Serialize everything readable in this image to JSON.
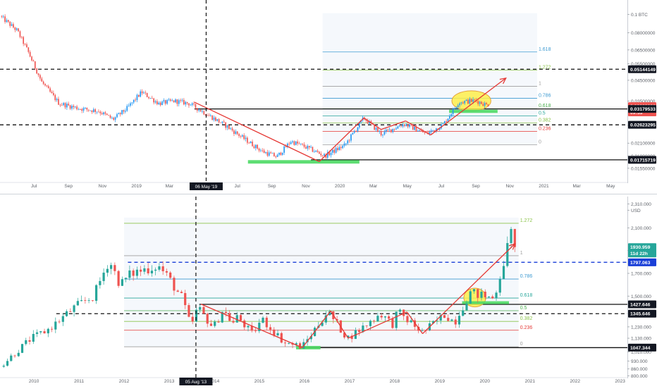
{
  "chart_data": [
    {
      "type": "candlestick",
      "quote_unit": "BTC",
      "colors": {
        "up": "#2196f3",
        "down": "#ef5350",
        "fib_fill": "#f5f8fc",
        "trend": "#e53935",
        "highlight_fill": "#fdee4a",
        "support_fill": "#4cd964"
      },
      "x_axis": {
        "ticks": [
          {
            "label": "Jul",
            "date": "2018-07-01"
          },
          {
            "label": "Sep",
            "date": "2018-09-01"
          },
          {
            "label": "Nov",
            "date": "2018-11-01"
          },
          {
            "label": "2019",
            "date": "2019-01-01"
          },
          {
            "label": "Mar",
            "date": "2019-03-01"
          },
          {
            "label": "May",
            "date": "2019-05-01"
          },
          {
            "label": "Jul",
            "date": "2019-07-01"
          },
          {
            "label": "Sep",
            "date": "2019-09-01"
          },
          {
            "label": "Nov",
            "date": "2019-11-01"
          },
          {
            "label": "2020",
            "date": "2020-01-01"
          },
          {
            "label": "Mar",
            "date": "2020-03-01"
          },
          {
            "label": "May",
            "date": "2020-05-01"
          },
          {
            "label": "Jul",
            "date": "2020-07-01"
          },
          {
            "label": "Sep",
            "date": "2020-09-01"
          },
          {
            "label": "Nov",
            "date": "2020-11-01"
          },
          {
            "label": "2021",
            "date": "2021-01-01"
          },
          {
            "label": "Mar",
            "date": "2021-03-01"
          },
          {
            "label": "May",
            "date": "2021-05-01"
          }
        ],
        "range": [
          "2018-05-01",
          "2021-05-31"
        ],
        "crosshair": {
          "label": "06 May '19",
          "date": "2019-05-06"
        }
      },
      "y_axis": {
        "scale": "log",
        "range": [
          0.0135,
          0.115
        ],
        "ticks": [
          {
            "label": "0.1 BTC",
            "value": 0.1
          },
          {
            "label": "0.08000000",
            "value": 0.08
          },
          {
            "label": "0.06500000",
            "value": 0.065
          },
          {
            "label": "0.05500000",
            "value": 0.055
          },
          {
            "label": "0.04500000",
            "value": 0.045
          },
          {
            "label": "0.03500000",
            "value": 0.035
          },
          {
            "label": "0.02600000",
            "value": 0.026
          },
          {
            "label": "0.02100000",
            "value": 0.021
          },
          {
            "label": "0.01800000",
            "value": 0.018
          },
          {
            "label": "0.01550000",
            "value": 0.0155
          }
        ]
      },
      "price_tags": [
        {
          "label": "0.05144149",
          "value": 0.05144149,
          "style": "dashed-line"
        },
        {
          "label": "0.03289996",
          "value": 0.03289996,
          "style": "current"
        },
        {
          "label": "09:53",
          "value": 0.0305,
          "style": "countdown"
        },
        {
          "label": "0.03179533",
          "value": 0.03179533,
          "style": "solid-line"
        },
        {
          "label": "0.02623295",
          "value": 0.02623295,
          "style": "dashed-line"
        },
        {
          "label": "0.01715719",
          "value": 0.01715719,
          "style": "solid-line"
        }
      ],
      "fib_levels": [
        {
          "label": "1.618",
          "value": 0.0634,
          "color": "#3d9ad1"
        },
        {
          "label": "1.272",
          "value": 0.0509,
          "color": "#8bc34a"
        },
        {
          "label": "1",
          "value": 0.0418,
          "color": "#9e9e9e"
        },
        {
          "label": "0.786",
          "value": 0.0362,
          "color": "#3d9ad1"
        },
        {
          "label": "0.618",
          "value": 0.0319,
          "color": "#4caf50"
        },
        {
          "label": "0.5",
          "value": 0.0292,
          "color": "#26a69a"
        },
        {
          "label": "0.382",
          "value": 0.0268,
          "color": "#8bc34a"
        },
        {
          "label": "0.236",
          "value": 0.0242,
          "color": "#e53935"
        },
        {
          "label": "0",
          "value": 0.0206,
          "color": "#9e9e9e"
        }
      ],
      "fib_range": [
        "2019-12-01",
        "2020-12-20"
      ],
      "horizontal_levels": [
        {
          "value": 0.05144149,
          "style": "dashed",
          "from": "2018-05-01"
        },
        {
          "value": 0.03179533,
          "style": "solid",
          "from": "2019-04-15"
        },
        {
          "value": 0.02623295,
          "style": "dashed",
          "from": "2018-05-01"
        },
        {
          "value": 0.01715719,
          "style": "solid",
          "from": "2019-11-10"
        }
      ],
      "trend_lines": [
        {
          "points": [
            [
              "2019-04-15",
              0.0345
            ],
            [
              "2019-11-25",
              0.0168
            ]
          ]
        },
        {
          "points": [
            [
              "2019-11-25",
              0.0168
            ],
            [
              "2020-02-13",
              0.0285
            ]
          ]
        },
        {
          "points": [
            [
              "2020-02-13",
              0.0285
            ],
            [
              "2020-03-15",
              0.0248
            ]
          ]
        },
        {
          "points": [
            [
              "2020-03-15",
              0.0248
            ],
            [
              "2020-04-28",
              0.0275
            ]
          ]
        },
        {
          "points": [
            [
              "2020-04-28",
              0.0275
            ],
            [
              "2020-06-12",
              0.0232
            ]
          ]
        },
        {
          "points": [
            [
              "2020-06-12",
              0.0232
            ],
            [
              "2020-10-25",
              0.0462
            ]
          ],
          "arrow": true
        }
      ],
      "highlights": [
        {
          "type": "ellipse",
          "from": "2020-07-20",
          "to": "2020-09-28",
          "low": 0.031,
          "high": 0.0396
        },
        {
          "type": "rect",
          "from": "2019-07-20",
          "to": "2020-02-05",
          "low": 0.0164,
          "high": 0.0171
        },
        {
          "type": "rect",
          "from": "2020-07-15",
          "to": "2020-10-10",
          "low": 0.0303,
          "high": 0.0315
        }
      ],
      "ohlc_anchors": [
        [
          "2018-05-01",
          0.098
        ],
        [
          "2018-06-01",
          0.082
        ],
        [
          "2018-06-20",
          0.064
        ],
        [
          "2018-07-15",
          0.044
        ],
        [
          "2018-08-15",
          0.034
        ],
        [
          "2018-09-20",
          0.032
        ],
        [
          "2018-10-25",
          0.031
        ],
        [
          "2018-11-20",
          0.028
        ],
        [
          "2018-12-15",
          0.032
        ],
        [
          "2019-01-10",
          0.039
        ],
        [
          "2019-02-10",
          0.034
        ],
        [
          "2019-03-10",
          0.035
        ],
        [
          "2019-04-05",
          0.034
        ],
        [
          "2019-05-06",
          0.03
        ],
        [
          "2019-06-10",
          0.026
        ],
        [
          "2019-07-10",
          0.0225
        ],
        [
          "2019-08-15",
          0.019
        ],
        [
          "2019-09-10",
          0.0178
        ],
        [
          "2019-10-05",
          0.0215
        ],
        [
          "2019-11-05",
          0.0198
        ],
        [
          "2019-12-05",
          0.018
        ],
        [
          "2020-01-10",
          0.0205
        ],
        [
          "2020-02-13",
          0.0285
        ],
        [
          "2020-03-15",
          0.0235
        ],
        [
          "2020-04-25",
          0.0265
        ],
        [
          "2020-06-05",
          0.0235
        ],
        [
          "2020-07-05",
          0.0265
        ],
        [
          "2020-08-01",
          0.0345
        ],
        [
          "2020-09-01",
          0.0352
        ],
        [
          "2020-09-25",
          0.0329
        ]
      ],
      "candle_interval_days": 3,
      "last_date": "2020-09-25",
      "current_price": 0.03289996
    },
    {
      "type": "candlestick",
      "quote_unit": "USD",
      "colors": {
        "up": "#26a69a",
        "down": "#ef5350",
        "fib_fill": "#f5f8fc",
        "trend": "#e53935",
        "highlight_fill": "#fdee4a",
        "support_fill": "#4cd964"
      },
      "x_axis": {
        "ticks": [
          {
            "label": "2010",
            "date": "2010-01-01"
          },
          {
            "label": "2011",
            "date": "2011-01-01"
          },
          {
            "label": "2012",
            "date": "2012-01-01"
          },
          {
            "label": "2013",
            "date": "2013-01-01"
          },
          {
            "label": "2014",
            "date": "2014-01-01"
          },
          {
            "label": "2015",
            "date": "2015-01-01"
          },
          {
            "label": "2016",
            "date": "2016-01-01"
          },
          {
            "label": "2017",
            "date": "2017-01-01"
          },
          {
            "label": "2018",
            "date": "2018-01-01"
          },
          {
            "label": "2019",
            "date": "2019-01-01"
          },
          {
            "label": "2020",
            "date": "2020-01-01"
          },
          {
            "label": "2021",
            "date": "2021-01-01"
          },
          {
            "label": "2022",
            "date": "2022-01-01"
          },
          {
            "label": "2023",
            "date": "2023-01-01"
          }
        ],
        "range": [
          "2009-04-01",
          "2023-03-01"
        ],
        "crosshair": {
          "label": "05 Aug '13",
          "date": "2013-08-05"
        }
      },
      "y_axis": {
        "scale": "linear",
        "range": [
          790,
          2350
        ],
        "ticks": [
          {
            "label": "2,310.000",
            "value": 2310
          },
          {
            "label": "USD",
            "value": 2255
          },
          {
            "label": "2,100.000",
            "value": 2100
          },
          {
            "label": "1,900.000",
            "value": 1900
          },
          {
            "label": "1,700.000",
            "value": 1700
          },
          {
            "label": "1,500.000",
            "value": 1500
          },
          {
            "label": "1,230.000",
            "value": 1230
          },
          {
            "label": "1,130.000",
            "value": 1130
          },
          {
            "label": "1,010.000",
            "value": 1010
          },
          {
            "label": "930.000",
            "value": 930
          },
          {
            "label": "860.000",
            "value": 860
          },
          {
            "label": "800.000",
            "value": 800
          }
        ]
      },
      "price_tags": [
        {
          "label": "1930.959",
          "value": 1930.959,
          "style": "current"
        },
        {
          "label": "11d 22h",
          "value": 1875,
          "style": "countdown"
        },
        {
          "label": "1797.063",
          "value": 1797.063,
          "style": "dashed-blue"
        },
        {
          "label": "1427.646",
          "value": 1427.646,
          "style": "solid-line"
        },
        {
          "label": "1345.646",
          "value": 1345.646,
          "style": "dashed-line"
        },
        {
          "label": "1047.344",
          "value": 1047.344,
          "style": "solid-line"
        }
      ],
      "fib_levels": [
        {
          "label": "1.272",
          "value": 2140,
          "color": "#8bc34a"
        },
        {
          "label": "1",
          "value": 1855,
          "color": "#9e9e9e"
        },
        {
          "label": "0.786",
          "value": 1650,
          "color": "#3d9ad1"
        },
        {
          "label": "0.618",
          "value": 1483,
          "color": "#26a69a"
        },
        {
          "label": "0.5",
          "value": 1372,
          "color": "#4caf50"
        },
        {
          "label": "0.382",
          "value": 1278,
          "color": "#8bc34a"
        },
        {
          "label": "0.236",
          "value": 1200,
          "color": "#e53935"
        },
        {
          "label": "0",
          "value": 1055,
          "color": "#9e9e9e"
        }
      ],
      "fib_range": [
        "2012-01-01",
        "2020-10-01"
      ],
      "horizontal_levels": [
        {
          "value": 1797.063,
          "style": "dashed-blue",
          "from": "2012-02-01"
        },
        {
          "value": 1427.646,
          "style": "solid",
          "from": "2013-09-01"
        },
        {
          "value": 1345.646,
          "style": "dashed",
          "from": "2010-07-01"
        },
        {
          "value": 1047.344,
          "style": "solid",
          "from": "2016-01-01"
        }
      ],
      "trend_lines": [
        {
          "points": [
            [
              "2013-09-15",
              1430
            ],
            [
              "2015-12-15",
              1047
            ]
          ]
        },
        {
          "points": [
            [
              "2015-12-15",
              1047
            ],
            [
              "2016-08-01",
              1370
            ]
          ]
        },
        {
          "points": [
            [
              "2016-08-01",
              1370
            ],
            [
              "2016-12-20",
              1130
            ]
          ]
        },
        {
          "points": [
            [
              "2016-12-20",
              1130
            ],
            [
              "2018-04-10",
              1360
            ]
          ]
        },
        {
          "points": [
            [
              "2018-04-10",
              1360
            ],
            [
              "2018-08-15",
              1170
            ]
          ]
        },
        {
          "points": [
            [
              "2018-08-15",
              1170
            ],
            [
              "2020-09-01",
              1960
            ]
          ],
          "arrow": true
        }
      ],
      "highlights": [
        {
          "type": "ellipse",
          "from": "2019-07-15",
          "to": "2020-01-10",
          "low": 1405,
          "high": 1570
        },
        {
          "type": "rect",
          "from": "2015-10-25",
          "to": "2016-05-10",
          "low": 1032,
          "high": 1062
        },
        {
          "type": "rect",
          "from": "2019-07-01",
          "to": "2020-07-15",
          "low": 1430,
          "high": 1455
        }
      ],
      "ohlc_anchors": [
        [
          "2009-04-01",
          880
        ],
        [
          "2009-12-01",
          1120
        ],
        [
          "2010-05-01",
          1210
        ],
        [
          "2010-12-01",
          1405
        ],
        [
          "2011-05-01",
          1500
        ],
        [
          "2011-09-01",
          1820
        ],
        [
          "2011-12-01",
          1600
        ],
        [
          "2012-03-01",
          1700
        ],
        [
          "2012-10-01",
          1770
        ],
        [
          "2012-12-25",
          1660
        ],
        [
          "2013-04-15",
          1480
        ],
        [
          "2013-06-25",
          1230
        ],
        [
          "2013-08-20",
          1400
        ],
        [
          "2013-12-25",
          1220
        ],
        [
          "2014-03-10",
          1380
        ],
        [
          "2014-06-01",
          1260
        ],
        [
          "2014-07-10",
          1320
        ],
        [
          "2014-11-05",
          1160
        ],
        [
          "2015-01-20",
          1300
        ],
        [
          "2015-07-25",
          1090
        ],
        [
          "2015-12-15",
          1055
        ],
        [
          "2016-07-05",
          1365
        ],
        [
          "2016-12-15",
          1130
        ],
        [
          "2017-06-01",
          1260
        ],
        [
          "2017-09-08",
          1350
        ],
        [
          "2017-12-12",
          1250
        ],
        [
          "2018-01-25",
          1360
        ],
        [
          "2018-08-15",
          1180
        ],
        [
          "2019-02-15",
          1340
        ],
        [
          "2019-05-01",
          1270
        ],
        [
          "2019-09-01",
          1530
        ],
        [
          "2020-03-15",
          1480
        ],
        [
          "2020-08-06",
          2070
        ],
        [
          "2020-09-25",
          1930
        ]
      ],
      "candle_interval_days": 30,
      "last_date": "2020-09-25",
      "current_price": 1930.959
    }
  ]
}
